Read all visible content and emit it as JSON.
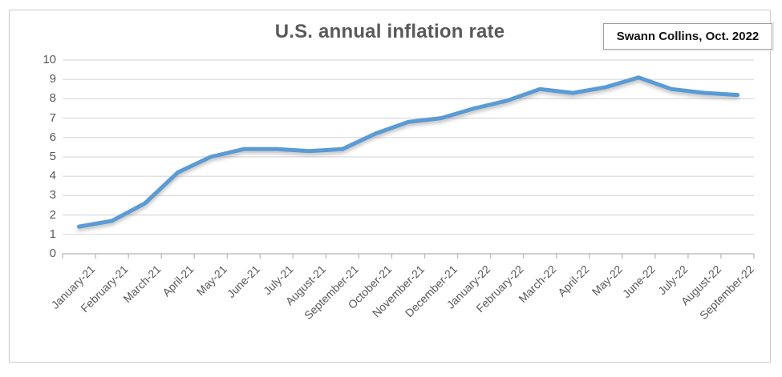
{
  "chart_data": {
    "type": "line",
    "title": "U.S. annual inflation rate",
    "annotation": "Swann Collins, Oct. 2022",
    "categories": [
      "January-21",
      "February-21",
      "March-21",
      "April-21",
      "May-21",
      "June-21",
      "July-21",
      "August-21",
      "September-21",
      "October-21",
      "November-21",
      "December-21",
      "January-22",
      "February-22",
      "March-22",
      "April-22",
      "May-22",
      "June-22",
      "July-22",
      "August-22",
      "September-22"
    ],
    "series": [
      {
        "name": "U.S. annual inflation rate",
        "values": [
          1.4,
          1.7,
          2.6,
          4.2,
          5.0,
          5.4,
          5.4,
          5.3,
          5.4,
          6.2,
          6.8,
          7.0,
          7.5,
          7.9,
          8.5,
          8.3,
          8.6,
          9.1,
          8.5,
          8.3,
          8.2
        ]
      }
    ],
    "xlabel": "",
    "ylabel": "",
    "ylim": [
      0,
      10
    ],
    "yticks": [
      0,
      1,
      2,
      3,
      4,
      5,
      6,
      7,
      8,
      9,
      10
    ],
    "grid": true,
    "legend_position": "none",
    "colors": {
      "series_line": "#5B9BD5",
      "gridline": "#D9D9D9",
      "axis_line": "#BFBFBF",
      "tick_label": "#595959",
      "title_text": "#595959",
      "annotation_text": "#111111",
      "annotation_border": "#9B9B9B",
      "frame_border": "#C9C9C9"
    }
  }
}
